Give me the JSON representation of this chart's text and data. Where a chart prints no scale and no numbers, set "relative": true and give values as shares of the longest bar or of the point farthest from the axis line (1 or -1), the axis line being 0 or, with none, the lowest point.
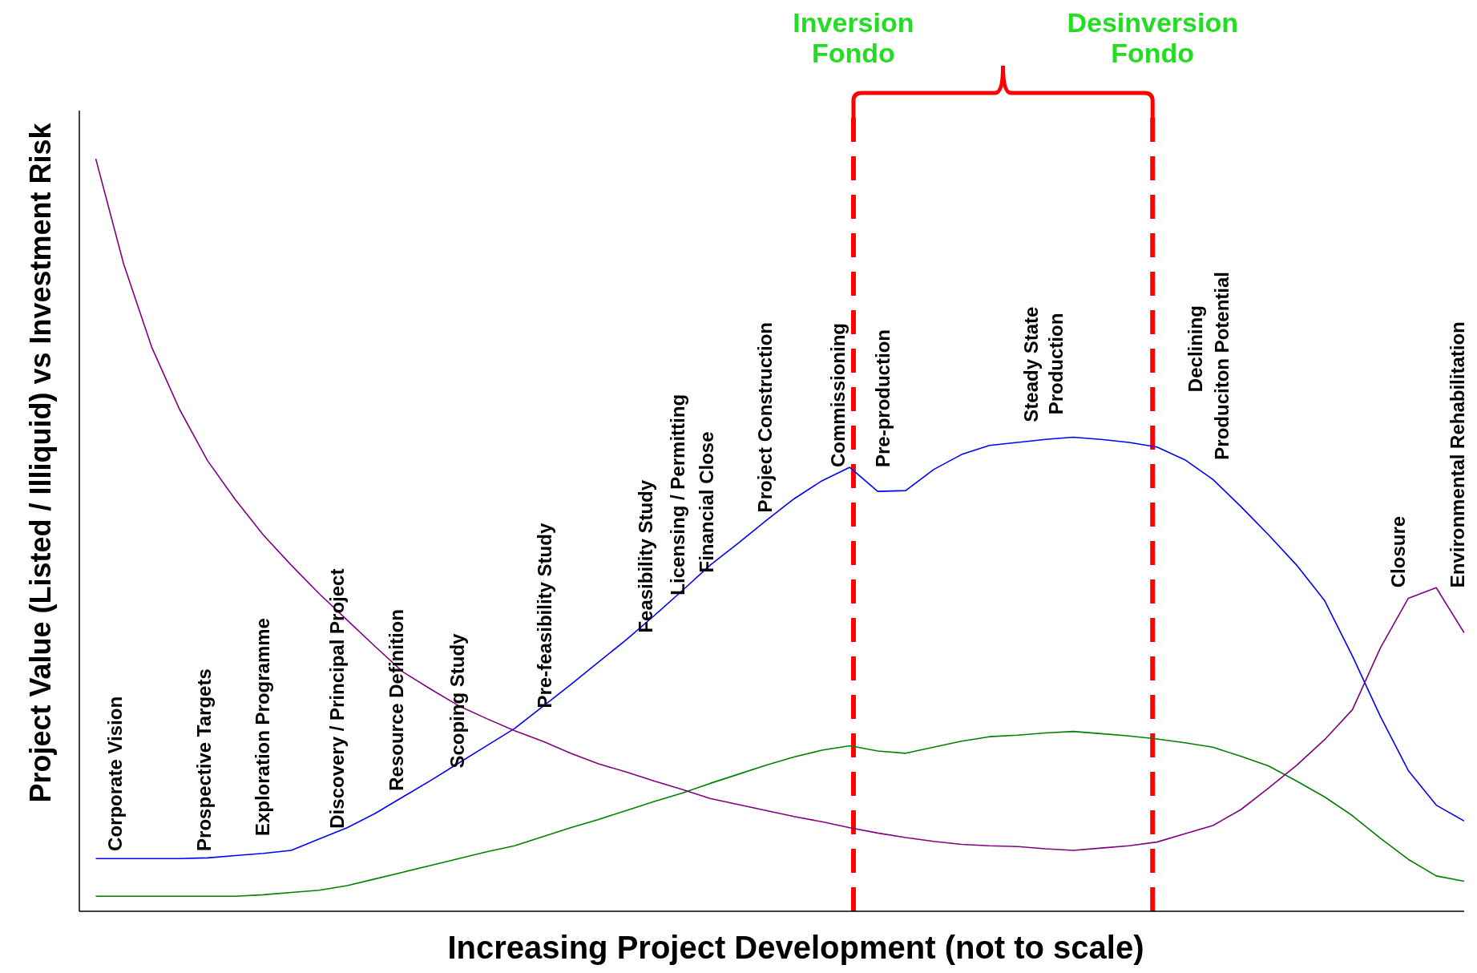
{
  "chart_data": {
    "type": "line",
    "relative": true,
    "grid": false,
    "legend": false,
    "marker": "none",
    "xlabel": "Increasing Project Development (not to scale)",
    "ylabel": "Project Value (Listed / Illiquid)  vs Investment Risk",
    "categories": [
      null,
      null,
      null,
      null,
      null,
      null,
      null,
      null,
      null,
      null,
      null,
      null,
      null,
      null,
      null,
      null,
      null,
      null,
      null,
      null,
      null,
      null,
      null,
      null,
      null,
      null,
      null,
      null,
      null,
      null,
      null,
      null,
      null,
      null,
      null,
      null,
      null,
      null,
      null,
      null,
      null,
      null,
      null,
      null,
      null,
      null,
      null,
      null,
      null,
      null
    ],
    "series": [
      {
        "color": "#0000ff",
        "values": [
          0.07,
          0.07,
          0.07,
          0.07,
          0.071,
          0.074,
          0.077,
          0.081,
          0.096,
          0.111,
          0.13,
          0.152,
          0.174,
          0.197,
          0.22,
          0.243,
          0.272,
          0.301,
          0.331,
          0.361,
          0.393,
          0.426,
          0.46,
          0.489,
          0.519,
          0.548,
          0.572,
          0.59,
          0.558,
          0.559,
          0.587,
          0.607,
          0.619,
          0.623,
          0.627,
          0.63,
          0.627,
          0.623,
          0.617,
          0.6,
          0.574,
          0.538,
          0.5,
          0.46,
          0.413,
          0.339,
          0.259,
          0.187,
          0.141,
          0.12
        ]
      },
      {
        "color": "#008000",
        "values": [
          0.02,
          0.02,
          0.02,
          0.02,
          0.02,
          0.02,
          0.022,
          0.025,
          0.028,
          0.034,
          0.043,
          0.052,
          0.061,
          0.07,
          0.079,
          0.087,
          0.099,
          0.111,
          0.122,
          0.134,
          0.146,
          0.157,
          0.17,
          0.182,
          0.194,
          0.205,
          0.214,
          0.22,
          0.213,
          0.21,
          0.218,
          0.226,
          0.232,
          0.234,
          0.237,
          0.239,
          0.236,
          0.233,
          0.229,
          0.224,
          0.218,
          0.206,
          0.193,
          0.173,
          0.152,
          0.127,
          0.097,
          0.069,
          0.047,
          0.04
        ]
      },
      {
        "color": "#800080",
        "values": [
          1,
          0.86,
          0.75,
          0.667,
          0.599,
          0.547,
          0.5,
          0.46,
          0.422,
          0.387,
          0.352,
          0.318,
          0.295,
          0.273,
          0.256,
          0.24,
          0.226,
          0.21,
          0.196,
          0.185,
          0.173,
          0.162,
          0.15,
          0.142,
          0.134,
          0.126,
          0.119,
          0.111,
          0.104,
          0.098,
          0.093,
          0.089,
          0.087,
          0.086,
          0.083,
          0.081,
          0.084,
          0.087,
          0.092,
          0.103,
          0.114,
          0.135,
          0.164,
          0.194,
          0.228,
          0.268,
          0.35,
          0.416,
          0.43,
          0.37
        ]
      }
    ],
    "ref_lines": [
      {
        "axis": "x",
        "label": "Inversion Fondo",
        "color": "#ff0000",
        "line_style": "dashed"
      },
      {
        "axis": "x",
        "label": "Desinversion Fondo",
        "color": "#ff0000",
        "line_style": "dashed"
      }
    ],
    "annotations": [
      "Corporate Vision",
      "Prospective Targets",
      "Exploration Programme",
      "Discovery / Principal Project",
      "Resource Definition",
      "Scoping Study",
      "Pre-feasibility Study",
      "Feasibility Study",
      "Licensing / Permitting",
      "Financial Close",
      "Project Construction",
      "Commissioning",
      "Pre-production",
      "Steady State",
      "Production",
      "Declining",
      "Produciton Potential",
      "Closure",
      "Environmental Rehabilitation"
    ]
  }
}
